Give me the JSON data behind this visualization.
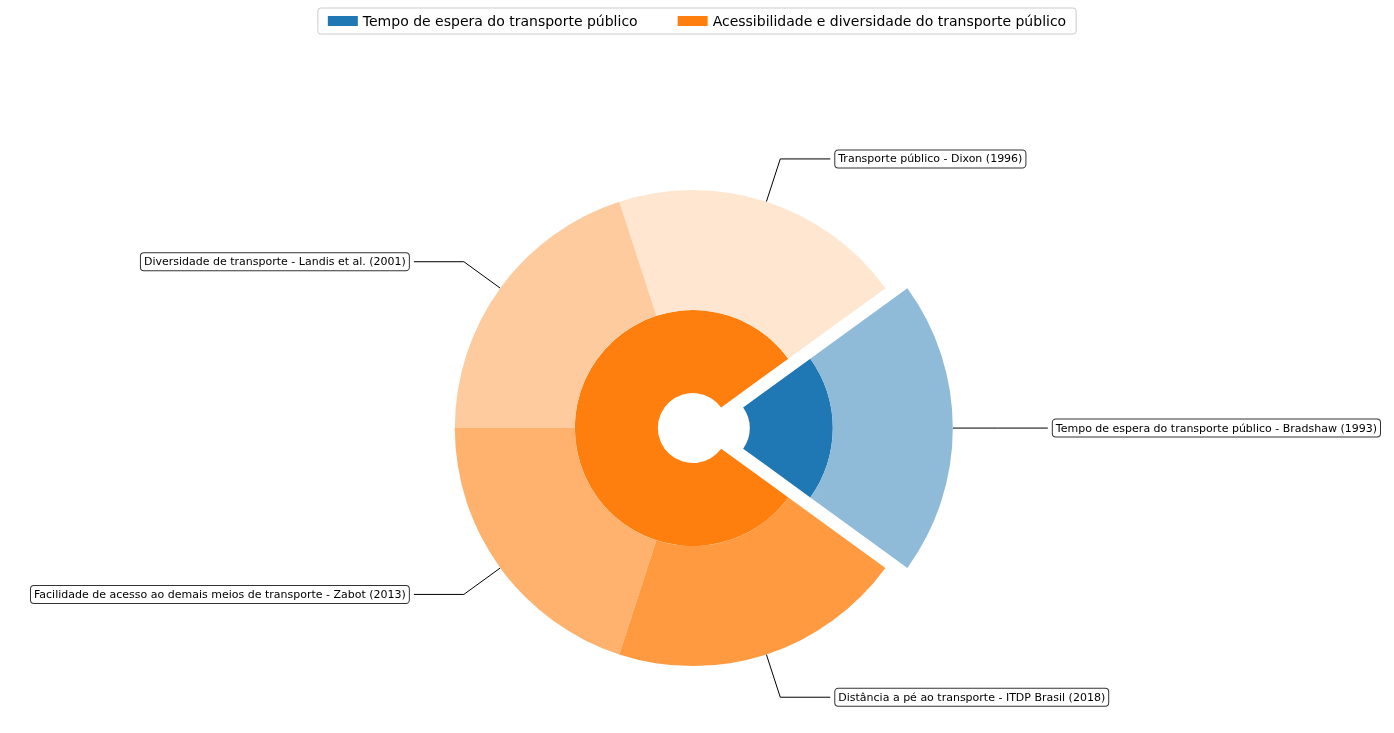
{
  "chart_data": [
    {
      "type": "donut",
      "legend": "top",
      "categories": [
        "Tempo de espera do transporte público",
        "Acessibilidade e diversidade do transporte público"
      ],
      "values": [
        20,
        80
      ],
      "colors": [
        "#1f77b4",
        "#ff7f0e"
      ]
    },
    {
      "type": "donut",
      "categories": [
        "Tempo de espera do transporte público - Bradshaw (1993)",
        "Transporte público - Dixon (1996)",
        "Diversidade de transporte - Landis et al. (2001)",
        "Facilidade de acesso ao demais meios de transporte - Zabot (2013)",
        "Distância a pé ao transporte - ITDP Brasil (2018)"
      ],
      "values": [
        20,
        20,
        20,
        20,
        20
      ],
      "colors": [
        "#8fbbd9",
        "#fee6d0",
        "#fecb9f",
        "#feb26e",
        "#ff9a40"
      ]
    }
  ]
}
